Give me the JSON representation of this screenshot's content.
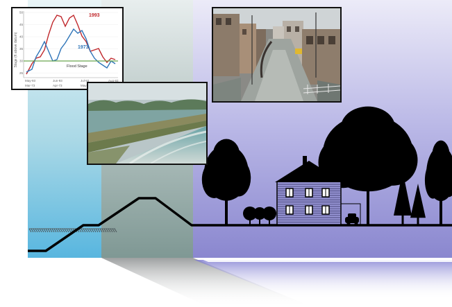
{
  "hydrograph": {
    "series_1993": "1993",
    "series_1973": "1973",
    "flood_stage": "Flood Stage",
    "ylabel": "Stage (ft above datum)",
    "ticks_top": [
      "May-93",
      "Jun-93",
      "Jul-93",
      "Aug-93"
    ],
    "ticks_bottom": [
      "Mar-73",
      "Apr-73",
      "May-73"
    ],
    "y_ticks": [
      "50",
      "45",
      "40",
      "35",
      "30",
      "25"
    ]
  },
  "colors": {
    "river_water": "#58b8e0",
    "floodplain_left": "#b8dcdc",
    "levee_strip": "#8ea8a4",
    "protected_area": "#9a98d6",
    "series_1993": "#c0282c",
    "series_1973": "#2e74b8",
    "flood_stage": "#6aa84f"
  },
  "icons": [
    "deciduous-tree-icon",
    "house-icon",
    "car-icon",
    "shrub-icon",
    "conifer-tree-icon"
  ]
}
